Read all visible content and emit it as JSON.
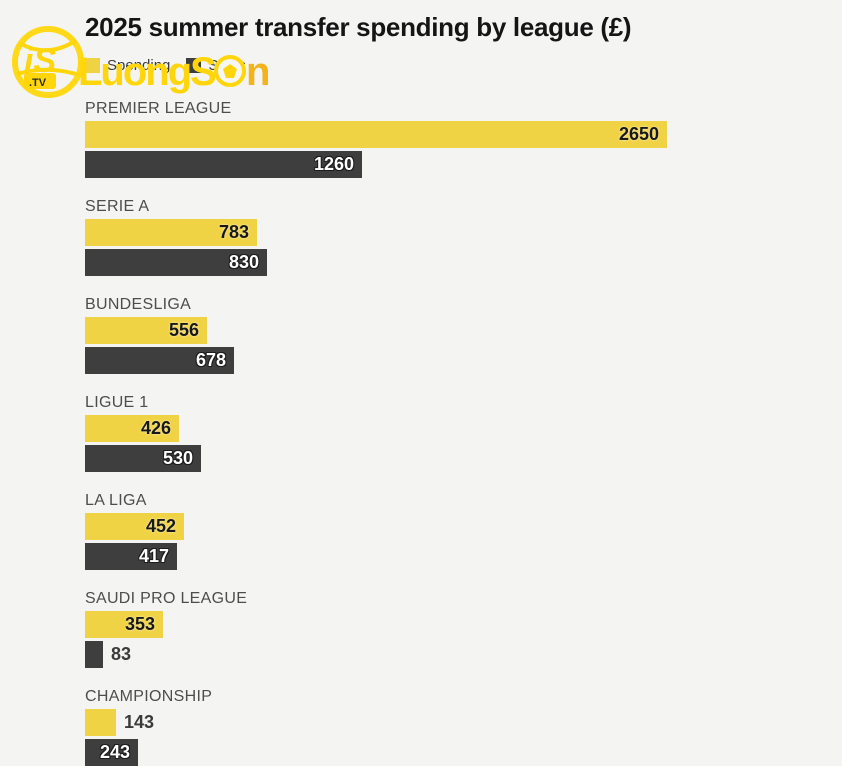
{
  "page": {
    "background_color": "#f4f4f3"
  },
  "watermark": {
    "name": "LuongSon TV logo",
    "text_main": "LuongS",
    "text_tail": "n",
    "badge_tv": ".TV",
    "color_yellow": "#ffd60b",
    "color_accent": "#f2b31c"
  },
  "chart_data": {
    "type": "bar",
    "orientation": "horizontal",
    "title": "2025 summer transfer spending by league (£)",
    "legend_position": "top-left",
    "grid": false,
    "value_labels": true,
    "xlim": [
      0,
      2650
    ],
    "categories": [
      "PREMIER LEAGUE",
      "SERIE A",
      "BUNDESLIGA",
      "LIGUE 1",
      "LA LIGA",
      "SAUDI PRO LEAGUE",
      "CHAMPIONSHIP"
    ],
    "series": [
      {
        "name": "Spending",
        "color": "#f0d345",
        "values": [
          2650,
          783,
          556,
          426,
          452,
          353,
          143
        ]
      },
      {
        "name": "Sales",
        "color": "#3e3e3e",
        "values": [
          1260,
          830,
          678,
          530,
          417,
          83,
          243
        ]
      }
    ]
  }
}
